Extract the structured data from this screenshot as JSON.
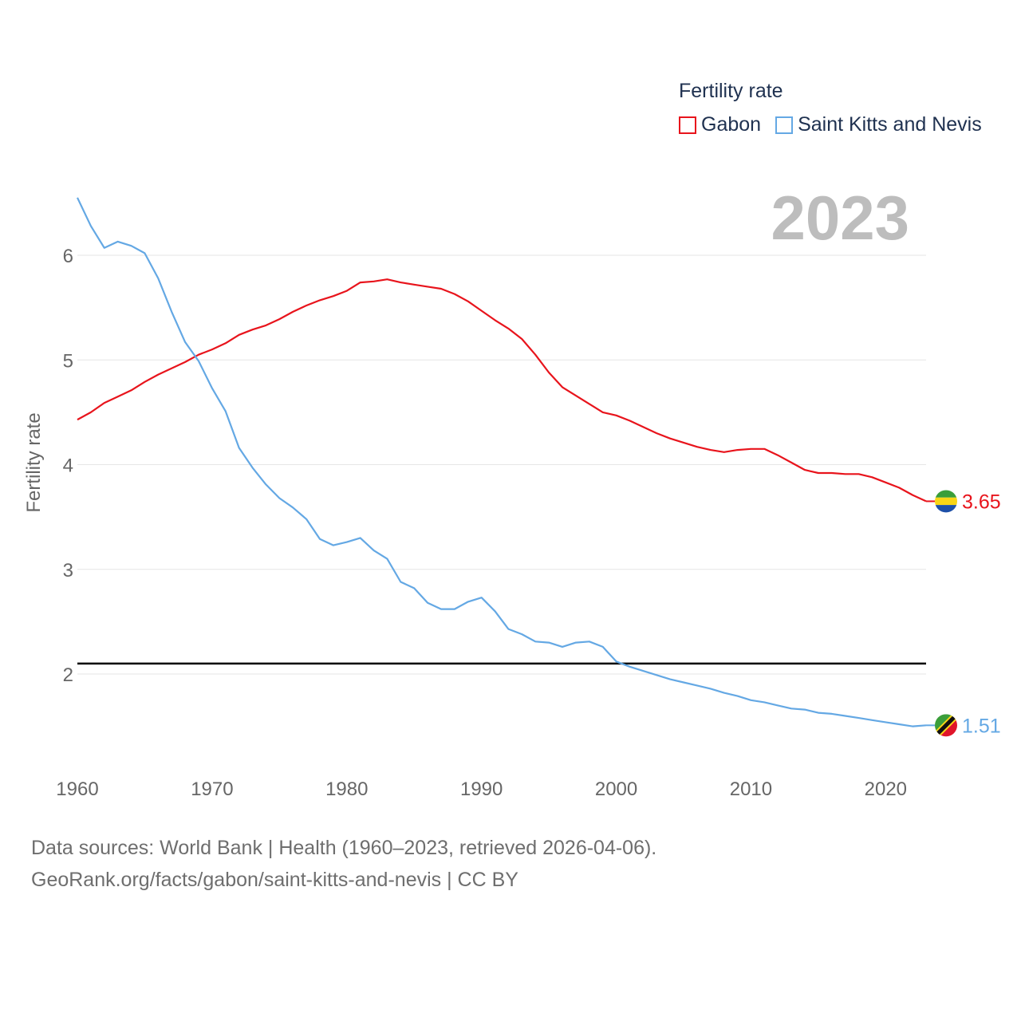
{
  "legend": {
    "title": "Fertility rate",
    "items": [
      {
        "label": "Gabon",
        "color": "#e8141c"
      },
      {
        "label": "Saint Kitts and Nevis",
        "color": "#64a8e4"
      }
    ]
  },
  "year_watermark": "2023",
  "footer": {
    "line1": "Data sources: World Bank | Health (1960–2023, retrieved 2026-04-06).",
    "line2": "GeoRank.org/facts/gabon/saint-kitts-and-nevis | CC BY"
  },
  "chart_data": {
    "type": "line",
    "title": "Fertility rate",
    "xlabel": "",
    "ylabel": "Fertility rate",
    "xlim": [
      1960,
      2023
    ],
    "ylim": [
      1.3,
      6.6
    ],
    "xticks": [
      1960,
      1970,
      1980,
      1990,
      2000,
      2010,
      2020
    ],
    "yticks": [
      2,
      3,
      4,
      5,
      6
    ],
    "grid": true,
    "reference_line": {
      "y": 2.1,
      "color": "#000000"
    },
    "series": [
      {
        "name": "Gabon",
        "color": "#e8141c",
        "end_label": "3.65",
        "x": [
          1960,
          1961,
          1962,
          1963,
          1964,
          1965,
          1966,
          1967,
          1968,
          1969,
          1970,
          1971,
          1972,
          1973,
          1974,
          1975,
          1976,
          1977,
          1978,
          1979,
          1980,
          1981,
          1982,
          1983,
          1984,
          1985,
          1986,
          1987,
          1988,
          1989,
          1990,
          1991,
          1992,
          1993,
          1994,
          1995,
          1996,
          1997,
          1998,
          1999,
          2000,
          2001,
          2002,
          2003,
          2004,
          2005,
          2006,
          2007,
          2008,
          2009,
          2010,
          2011,
          2012,
          2013,
          2014,
          2015,
          2016,
          2017,
          2018,
          2019,
          2020,
          2021,
          2022,
          2023
        ],
        "values": [
          4.43,
          4.5,
          4.59,
          4.65,
          4.71,
          4.79,
          4.86,
          4.92,
          4.98,
          5.05,
          5.1,
          5.16,
          5.24,
          5.29,
          5.33,
          5.39,
          5.46,
          5.52,
          5.57,
          5.61,
          5.66,
          5.74,
          5.75,
          5.77,
          5.74,
          5.72,
          5.7,
          5.68,
          5.63,
          5.56,
          5.47,
          5.38,
          5.3,
          5.2,
          5.05,
          4.88,
          4.74,
          4.66,
          4.58,
          4.5,
          4.47,
          4.42,
          4.36,
          4.3,
          4.25,
          4.21,
          4.17,
          4.14,
          4.12,
          4.14,
          4.15,
          4.15,
          4.09,
          4.02,
          3.95,
          3.92,
          3.92,
          3.91,
          3.91,
          3.88,
          3.83,
          3.78,
          3.71,
          3.65
        ]
      },
      {
        "name": "Saint Kitts and Nevis",
        "color": "#64a8e4",
        "end_label": "1.51",
        "x": [
          1960,
          1961,
          1962,
          1963,
          1964,
          1965,
          1966,
          1967,
          1968,
          1969,
          1970,
          1971,
          1972,
          1973,
          1974,
          1975,
          1976,
          1977,
          1978,
          1979,
          1980,
          1981,
          1982,
          1983,
          1984,
          1985,
          1986,
          1987,
          1988,
          1989,
          1990,
          1991,
          1992,
          1993,
          1994,
          1995,
          1996,
          1997,
          1998,
          1999,
          2000,
          2001,
          2002,
          2003,
          2004,
          2005,
          2006,
          2007,
          2008,
          2009,
          2010,
          2011,
          2012,
          2013,
          2014,
          2015,
          2016,
          2017,
          2018,
          2019,
          2020,
          2021,
          2022,
          2023
        ],
        "values": [
          6.55,
          6.28,
          6.07,
          6.13,
          6.09,
          6.02,
          5.78,
          5.46,
          5.17,
          4.99,
          4.73,
          4.51,
          4.16,
          3.97,
          3.81,
          3.68,
          3.59,
          3.48,
          3.29,
          3.23,
          3.26,
          3.3,
          3.18,
          3.1,
          2.88,
          2.82,
          2.68,
          2.62,
          2.62,
          2.69,
          2.73,
          2.6,
          2.43,
          2.38,
          2.31,
          2.3,
          2.26,
          2.3,
          2.31,
          2.26,
          2.12,
          2.07,
          2.03,
          1.99,
          1.95,
          1.92,
          1.89,
          1.86,
          1.82,
          1.79,
          1.75,
          1.73,
          1.7,
          1.67,
          1.66,
          1.63,
          1.62,
          1.6,
          1.58,
          1.56,
          1.54,
          1.52,
          1.5,
          1.51
        ]
      }
    ]
  }
}
